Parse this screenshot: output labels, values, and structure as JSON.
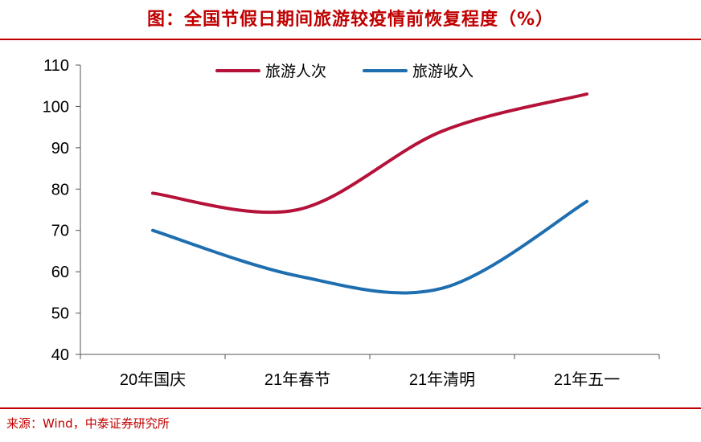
{
  "title": "图：全国节假日期间旅游较疫情前恢复程度（%）",
  "source": "来源：Wind，中泰证券研究所",
  "chart_data": {
    "type": "line",
    "categories": [
      "20年国庆",
      "21年春节",
      "21年清明",
      "21年五一"
    ],
    "series": [
      {
        "name": "旅游人次",
        "color": "#b5123a",
        "values": [
          79,
          75,
          94,
          103
        ]
      },
      {
        "name": "旅游收入",
        "color": "#1f6fb0",
        "values": [
          70,
          59,
          56,
          77
        ]
      }
    ],
    "ylim": [
      40,
      110
    ],
    "yticks": [
      40,
      50,
      60,
      70,
      80,
      90,
      100,
      110
    ],
    "grid": false,
    "smooth": true,
    "legend_position": "top"
  }
}
